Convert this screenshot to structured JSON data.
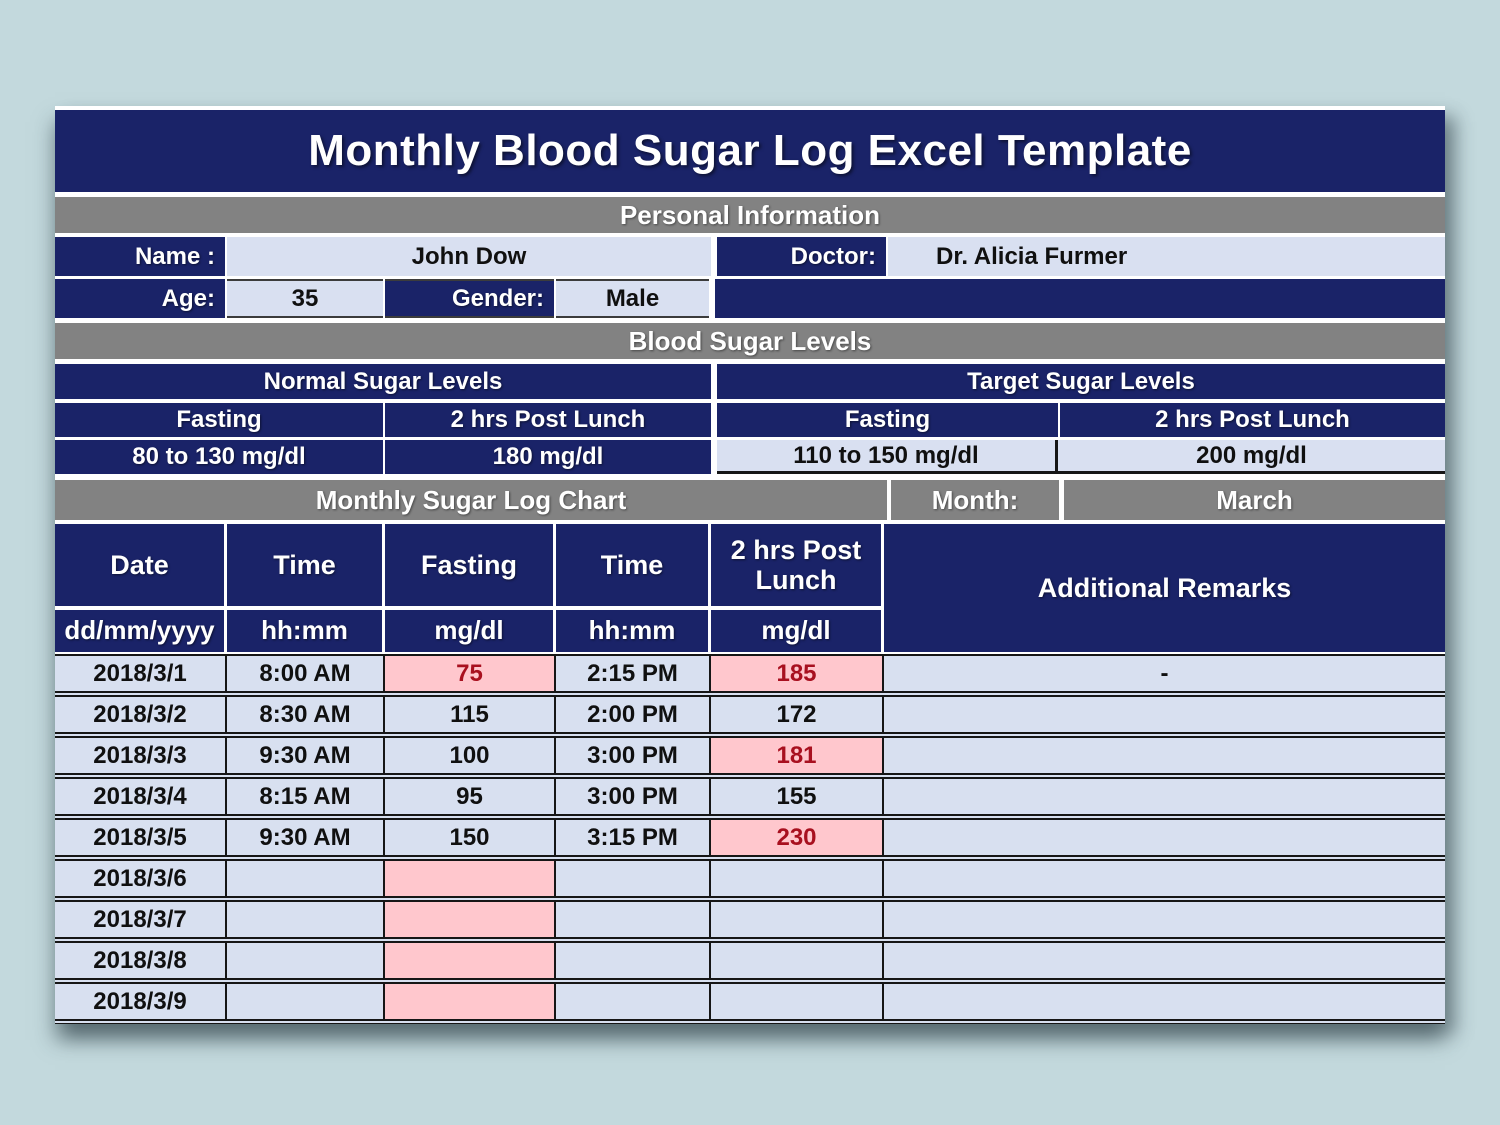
{
  "title": "Monthly Blood Sugar Log Excel Template",
  "personal": {
    "section_title": "Personal Information",
    "name_label": "Name :",
    "name_value": "John Dow",
    "doctor_label": "Doctor:",
    "doctor_value": "Dr. Alicia Furmer",
    "age_label": "Age:",
    "age_value": "35",
    "gender_label": "Gender:",
    "gender_value": "Male"
  },
  "sugar_levels": {
    "section_title": "Blood Sugar Levels",
    "normal": {
      "title": "Normal Sugar Levels",
      "fasting_label": "Fasting",
      "post_lunch_label": "2 hrs Post Lunch",
      "fasting_value": "80 to 130 mg/dl",
      "post_lunch_value": "180 mg/dl"
    },
    "target": {
      "title": "Target Sugar Levels",
      "fasting_label": "Fasting",
      "post_lunch_label": "2 hrs Post Lunch",
      "fasting_value": "110 to 150 mg/dl",
      "post_lunch_value": "200 mg/dl"
    }
  },
  "log": {
    "section_title": "Monthly Sugar Log Chart",
    "month_label": "Month:",
    "month_value": "March",
    "columns": [
      {
        "label": "Date",
        "unit": "dd/mm/yyyy"
      },
      {
        "label": "Time",
        "unit": "hh:mm"
      },
      {
        "label": "Fasting",
        "unit": "mg/dl"
      },
      {
        "label": "Time",
        "unit": "hh:mm"
      },
      {
        "label": "2 hrs Post Lunch",
        "unit": "mg/dl"
      },
      {
        "label": "Additional Remarks",
        "unit": ""
      }
    ],
    "rows": [
      {
        "date": "2018/3/1",
        "time1": "8:00 AM",
        "fasting": "75",
        "fasting_alert": true,
        "time2": "2:15 PM",
        "post_lunch": "185",
        "post_lunch_alert": true,
        "remarks": "-"
      },
      {
        "date": "2018/3/2",
        "time1": "8:30 AM",
        "fasting": "115",
        "fasting_alert": false,
        "time2": "2:00 PM",
        "post_lunch": "172",
        "post_lunch_alert": false,
        "remarks": ""
      },
      {
        "date": "2018/3/3",
        "time1": "9:30 AM",
        "fasting": "100",
        "fasting_alert": false,
        "time2": "3:00 PM",
        "post_lunch": "181",
        "post_lunch_alert": true,
        "remarks": ""
      },
      {
        "date": "2018/3/4",
        "time1": "8:15 AM",
        "fasting": "95",
        "fasting_alert": false,
        "time2": "3:00 PM",
        "post_lunch": "155",
        "post_lunch_alert": false,
        "remarks": ""
      },
      {
        "date": "2018/3/5",
        "time1": "9:30 AM",
        "fasting": "150",
        "fasting_alert": false,
        "time2": "3:15 PM",
        "post_lunch": "230",
        "post_lunch_alert": true,
        "remarks": ""
      },
      {
        "date": "2018/3/6",
        "time1": "",
        "fasting": "",
        "fasting_alert": true,
        "time2": "",
        "post_lunch": "",
        "post_lunch_alert": false,
        "remarks": ""
      },
      {
        "date": "2018/3/7",
        "time1": "",
        "fasting": "",
        "fasting_alert": true,
        "time2": "",
        "post_lunch": "",
        "post_lunch_alert": false,
        "remarks": ""
      },
      {
        "date": "2018/3/8",
        "time1": "",
        "fasting": "",
        "fasting_alert": true,
        "time2": "",
        "post_lunch": "",
        "post_lunch_alert": false,
        "remarks": ""
      },
      {
        "date": "2018/3/9",
        "time1": "",
        "fasting": "",
        "fasting_alert": true,
        "time2": "",
        "post_lunch": "",
        "post_lunch_alert": false,
        "remarks": ""
      }
    ]
  },
  "colors": {
    "navy": "#1a2368",
    "section_gray": "#828282",
    "light_cell": "#d9e0f1",
    "alert_fill": "#ffc7cd",
    "alert_text": "#a8101f",
    "page_background": "#c3d9dd"
  }
}
